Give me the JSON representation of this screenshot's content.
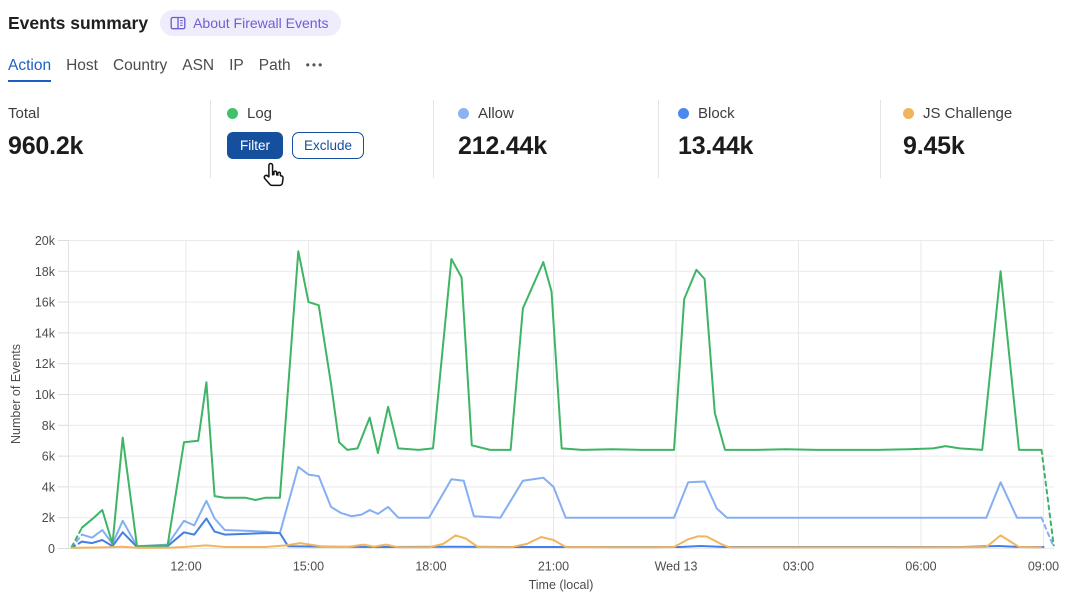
{
  "header": {
    "title": "Events summary",
    "about_link": {
      "label": "About Firewall Events",
      "icon": "open-book"
    }
  },
  "tabs": {
    "items": [
      {
        "label": "Action",
        "active": true
      },
      {
        "label": "Host",
        "active": false
      },
      {
        "label": "Country",
        "active": false
      },
      {
        "label": "ASN",
        "active": false
      },
      {
        "label": "IP",
        "active": false
      },
      {
        "label": "Path",
        "active": false
      }
    ],
    "overflow_glyph": "•••",
    "active_color": "#1b5fc6"
  },
  "stats": {
    "total": {
      "label": "Total",
      "value": "960.2k"
    },
    "log": {
      "label": "Log",
      "dot_color": "#41c06a",
      "filter_button": "Filter",
      "exclude_button": "Exclude"
    },
    "allow": {
      "label": "Allow",
      "value": "212.44k",
      "dot_color": "#8ab2f4"
    },
    "block": {
      "label": "Block",
      "value": "13.44k",
      "dot_color": "#4a8af0"
    },
    "js_challenge": {
      "label": "JS Challenge",
      "value": "9.45k",
      "dot_color": "#f0b45f"
    }
  },
  "cursor_icon": "hand-pointer",
  "chart_data": {
    "type": "line",
    "xlabel": "Time (local)",
    "ylabel": "Number of Events",
    "values_in": "thousands",
    "x_unit": "hours_local_from_09:00_prev_day",
    "xlim": [
      9.1,
      33.3
    ],
    "ylim": [
      0,
      20000
    ],
    "grid": true,
    "legend_position": "stats-row-above",
    "y_ticks": [
      "0",
      "2k",
      "4k",
      "6k",
      "8k",
      "10k",
      "12k",
      "14k",
      "16k",
      "18k",
      "20k"
    ],
    "x_ticks": [
      {
        "h": 12,
        "label": "12:00"
      },
      {
        "h": 15,
        "label": "15:00"
      },
      {
        "h": 18,
        "label": "18:00"
      },
      {
        "h": 21,
        "label": "21:00"
      },
      {
        "h": 24,
        "label": "Wed 13"
      },
      {
        "h": 27,
        "label": "03:00"
      },
      {
        "h": 30,
        "label": "06:00"
      },
      {
        "h": 33,
        "label": "09:00"
      }
    ],
    "series": [
      {
        "id": "allow",
        "name": "Allow",
        "color": "#85aff2",
        "dash_start": true,
        "dash_end": true,
        "points": [
          [
            9.2,
            0.05
          ],
          [
            9.45,
            0.9
          ],
          [
            9.7,
            0.7
          ],
          [
            9.95,
            1.2
          ],
          [
            10.2,
            0.3
          ],
          [
            10.45,
            1.8
          ],
          [
            10.8,
            0.15
          ],
          [
            11.55,
            0.25
          ],
          [
            11.95,
            1.8
          ],
          [
            12.2,
            1.5
          ],
          [
            12.5,
            3.1
          ],
          [
            12.7,
            1.95
          ],
          [
            12.95,
            1.2
          ],
          [
            13.45,
            1.15
          ],
          [
            13.95,
            1.1
          ],
          [
            14.3,
            1.0
          ],
          [
            14.75,
            5.3
          ],
          [
            15.0,
            4.8
          ],
          [
            15.25,
            4.7
          ],
          [
            15.55,
            2.7
          ],
          [
            15.8,
            2.3
          ],
          [
            16.05,
            2.1
          ],
          [
            16.3,
            2.2
          ],
          [
            16.5,
            2.5
          ],
          [
            16.7,
            2.25
          ],
          [
            16.95,
            2.7
          ],
          [
            17.2,
            2.0
          ],
          [
            17.95,
            2.0
          ],
          [
            18.5,
            4.5
          ],
          [
            18.8,
            4.4
          ],
          [
            19.05,
            2.1
          ],
          [
            19.7,
            2.0
          ],
          [
            20.25,
            4.4
          ],
          [
            20.75,
            4.6
          ],
          [
            21.0,
            4.0
          ],
          [
            21.3,
            2.0
          ],
          [
            22.45,
            2.0
          ],
          [
            23.2,
            2.0
          ],
          [
            23.95,
            2.0
          ],
          [
            24.3,
            4.3
          ],
          [
            24.7,
            4.35
          ],
          [
            25.0,
            2.6
          ],
          [
            25.25,
            2.0
          ],
          [
            26.45,
            2.0
          ],
          [
            27.95,
            2.0
          ],
          [
            29.45,
            2.0
          ],
          [
            30.95,
            2.0
          ],
          [
            31.6,
            2.0
          ],
          [
            31.95,
            4.3
          ],
          [
            32.35,
            2.0
          ],
          [
            32.95,
            2.0
          ],
          [
            33.25,
            0.1
          ]
        ]
      },
      {
        "id": "block",
        "name": "Block",
        "color": "#4480e4",
        "dash_start": true,
        "dash_end": false,
        "points": [
          [
            9.2,
            0.05
          ],
          [
            9.45,
            0.45
          ],
          [
            9.7,
            0.35
          ],
          [
            9.95,
            0.55
          ],
          [
            10.2,
            0.15
          ],
          [
            10.45,
            1.05
          ],
          [
            10.8,
            0.1
          ],
          [
            11.55,
            0.15
          ],
          [
            11.95,
            1.05
          ],
          [
            12.2,
            0.9
          ],
          [
            12.5,
            1.95
          ],
          [
            12.7,
            1.1
          ],
          [
            12.95,
            0.9
          ],
          [
            13.45,
            0.95
          ],
          [
            13.95,
            1.0
          ],
          [
            14.3,
            1.0
          ],
          [
            14.5,
            0.15
          ],
          [
            15.5,
            0.12
          ],
          [
            17.0,
            0.1
          ],
          [
            18.6,
            0.12
          ],
          [
            20.0,
            0.1
          ],
          [
            21.5,
            0.1
          ],
          [
            23.0,
            0.1
          ],
          [
            24.1,
            0.1
          ],
          [
            24.6,
            0.16
          ],
          [
            25.2,
            0.1
          ],
          [
            26.5,
            0.1
          ],
          [
            28.0,
            0.1
          ],
          [
            29.5,
            0.1
          ],
          [
            31.0,
            0.1
          ],
          [
            31.9,
            0.16
          ],
          [
            32.4,
            0.1
          ],
          [
            33.0,
            0.1
          ]
        ]
      },
      {
        "id": "log",
        "name": "Log",
        "color": "#3eb564",
        "dash_start": true,
        "dash_end": true,
        "points": [
          [
            9.2,
            0.1
          ],
          [
            9.45,
            1.35
          ],
          [
            9.7,
            1.9
          ],
          [
            9.95,
            2.5
          ],
          [
            10.2,
            0.3
          ],
          [
            10.45,
            7.2
          ],
          [
            10.8,
            0.15
          ],
          [
            11.55,
            0.2
          ],
          [
            11.95,
            6.9
          ],
          [
            12.3,
            7.0
          ],
          [
            12.5,
            10.8
          ],
          [
            12.7,
            3.4
          ],
          [
            12.95,
            3.3
          ],
          [
            13.45,
            3.3
          ],
          [
            13.7,
            3.15
          ],
          [
            13.95,
            3.3
          ],
          [
            14.3,
            3.3
          ],
          [
            14.75,
            19.3
          ],
          [
            15.0,
            16.0
          ],
          [
            15.25,
            15.8
          ],
          [
            15.55,
            10.7
          ],
          [
            15.75,
            6.9
          ],
          [
            15.95,
            6.4
          ],
          [
            16.2,
            6.5
          ],
          [
            16.5,
            8.5
          ],
          [
            16.7,
            6.2
          ],
          [
            16.95,
            9.2
          ],
          [
            17.2,
            6.5
          ],
          [
            17.7,
            6.4
          ],
          [
            18.05,
            6.5
          ],
          [
            18.5,
            18.8
          ],
          [
            18.75,
            17.6
          ],
          [
            19.0,
            6.7
          ],
          [
            19.45,
            6.4
          ],
          [
            19.95,
            6.4
          ],
          [
            20.25,
            15.6
          ],
          [
            20.75,
            18.6
          ],
          [
            20.95,
            16.7
          ],
          [
            21.2,
            6.5
          ],
          [
            21.7,
            6.4
          ],
          [
            22.45,
            6.45
          ],
          [
            23.2,
            6.4
          ],
          [
            23.95,
            6.4
          ],
          [
            24.2,
            16.2
          ],
          [
            24.5,
            18.1
          ],
          [
            24.7,
            17.5
          ],
          [
            24.95,
            8.8
          ],
          [
            25.2,
            6.4
          ],
          [
            25.95,
            6.4
          ],
          [
            26.7,
            6.45
          ],
          [
            27.45,
            6.4
          ],
          [
            28.2,
            6.4
          ],
          [
            28.95,
            6.4
          ],
          [
            29.7,
            6.45
          ],
          [
            30.3,
            6.5
          ],
          [
            30.6,
            6.65
          ],
          [
            30.95,
            6.5
          ],
          [
            31.5,
            6.4
          ],
          [
            31.95,
            18.0
          ],
          [
            32.4,
            6.4
          ],
          [
            32.95,
            6.4
          ],
          [
            33.25,
            0.2
          ]
        ]
      },
      {
        "id": "js_challenge",
        "name": "JS Challenge",
        "color": "#f2b55e",
        "dash_start": false,
        "dash_end": false,
        "points": [
          [
            9.2,
            0.04
          ],
          [
            9.95,
            0.07
          ],
          [
            10.45,
            0.12
          ],
          [
            10.8,
            0.05
          ],
          [
            11.55,
            0.05
          ],
          [
            11.95,
            0.1
          ],
          [
            12.5,
            0.2
          ],
          [
            12.95,
            0.1
          ],
          [
            13.95,
            0.1
          ],
          [
            14.45,
            0.2
          ],
          [
            14.8,
            0.35
          ],
          [
            15.3,
            0.15
          ],
          [
            15.95,
            0.1
          ],
          [
            16.35,
            0.25
          ],
          [
            16.6,
            0.12
          ],
          [
            16.9,
            0.25
          ],
          [
            17.2,
            0.08
          ],
          [
            17.95,
            0.08
          ],
          [
            18.3,
            0.3
          ],
          [
            18.6,
            0.85
          ],
          [
            18.85,
            0.65
          ],
          [
            19.15,
            0.1
          ],
          [
            19.95,
            0.08
          ],
          [
            20.35,
            0.3
          ],
          [
            20.7,
            0.75
          ],
          [
            21.0,
            0.55
          ],
          [
            21.3,
            0.1
          ],
          [
            22.45,
            0.08
          ],
          [
            23.45,
            0.08
          ],
          [
            23.95,
            0.1
          ],
          [
            24.3,
            0.6
          ],
          [
            24.55,
            0.8
          ],
          [
            24.75,
            0.78
          ],
          [
            25.1,
            0.3
          ],
          [
            25.3,
            0.08
          ],
          [
            26.45,
            0.07
          ],
          [
            27.95,
            0.07
          ],
          [
            29.45,
            0.07
          ],
          [
            30.95,
            0.08
          ],
          [
            31.6,
            0.1
          ],
          [
            31.95,
            0.85
          ],
          [
            32.4,
            0.1
          ],
          [
            32.95,
            0.07
          ]
        ]
      }
    ]
  }
}
